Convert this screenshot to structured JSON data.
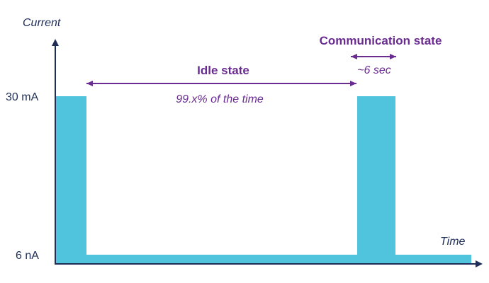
{
  "chart_data": {
    "type": "area",
    "ylabel": "Current",
    "xlabel": "Time",
    "ytick_labels": [
      "30 mA",
      "6 nA"
    ],
    "levels": {
      "high": "30 mA",
      "low": "6 nA"
    },
    "segments": [
      {
        "state": "communication",
        "level": "high"
      },
      {
        "state": "idle",
        "level": "low"
      },
      {
        "state": "communication",
        "level": "high"
      },
      {
        "state": "idle",
        "level": "low"
      }
    ],
    "annotations": {
      "idle": {
        "title": "Idle state",
        "note": "99.x% of the time"
      },
      "communication": {
        "title": "Communication state",
        "note": "~6 sec"
      }
    },
    "grid": false
  },
  "colors": {
    "fill": "#4fc4dc",
    "axis": "#1d2d57",
    "annotation": "#6a2c91"
  }
}
